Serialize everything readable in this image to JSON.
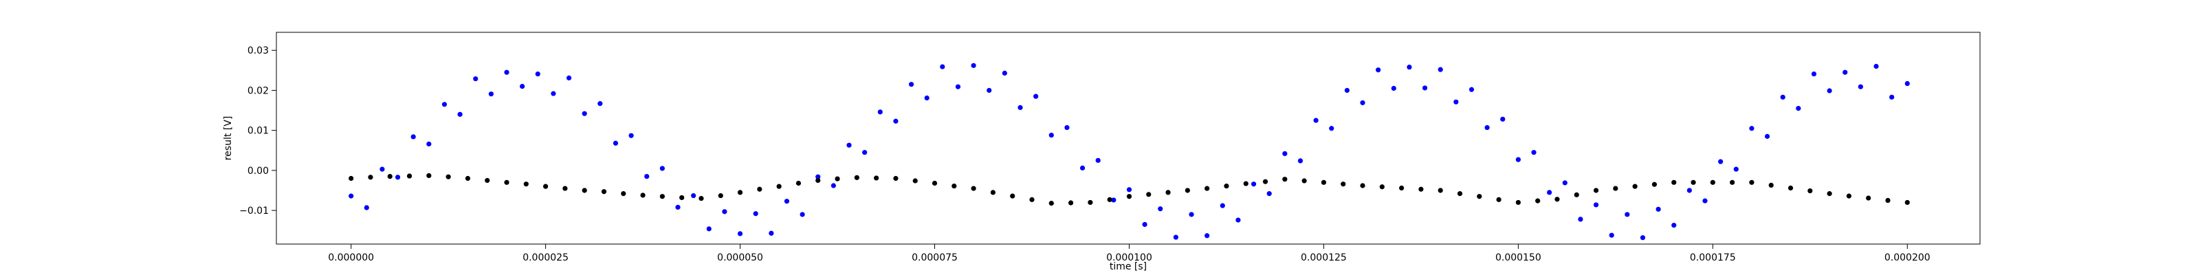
{
  "chart_data": {
    "type": "scatter",
    "xlabel": "time [s]",
    "ylabel": "result [V]",
    "xlim": [
      -9.6e-06,
      0.00020934
    ],
    "ylim": [
      -0.0184,
      0.0345
    ],
    "xticks": [
      {
        "value": 0,
        "label": "0.000000"
      },
      2.5e-05,
      {
        "value": 5e-05,
        "label": "0.000050"
      },
      7.5e-05,
      {
        "value": 0.0001,
        "label": "0.000100"
      },
      0.000125,
      {
        "value": 0.00015,
        "label": "0.000150"
      },
      0.000175,
      {
        "value": 0.0002,
        "label": "0.000200"
      }
    ],
    "yticks": [
      {
        "value": -0.01,
        "label": "−0.01"
      },
      {
        "value": 0,
        "label": "0.00"
      },
      0.01,
      0.02,
      0.03
    ],
    "grid": false,
    "series": [
      {
        "color": "#0000ff",
        "x": [
          0,
          2e-06,
          4e-06,
          6e-06,
          8e-06,
          1e-05,
          1.2e-05,
          1.4e-05,
          1.6e-05,
          1.8e-05,
          2e-05,
          2.2e-05,
          2.4e-05,
          2.6e-05,
          2.8e-05,
          3e-05,
          3.2e-05,
          3.4e-05,
          3.6e-05,
          3.8e-05,
          4e-05,
          4.2e-05,
          4.4e-05,
          4.6e-05,
          4.8e-05,
          5e-05,
          5.2e-05,
          5.4e-05,
          5.6e-05,
          5.8e-05,
          6e-05,
          6.2e-05,
          6.4e-05,
          6.6e-05,
          6.8e-05,
          7e-05,
          7.2e-05,
          7.4e-05,
          7.6e-05,
          7.8e-05,
          8e-05,
          8.2e-05,
          8.4e-05,
          8.6e-05,
          8.8e-05,
          9e-05,
          9.2e-05,
          9.4e-05,
          9.6e-05,
          9.8e-05,
          0.0001,
          0.000102,
          0.000104,
          0.000106,
          0.000108,
          0.00011,
          0.000112,
          0.000114,
          0.000116,
          0.000118,
          0.00012,
          0.000122,
          0.000124,
          0.000126,
          0.000128,
          0.00013,
          0.000132,
          0.000134,
          0.000136,
          0.000138,
          0.00014,
          0.000142,
          0.000144,
          0.000146,
          0.000148,
          0.00015,
          0.000152,
          0.000154,
          0.000156,
          0.000158,
          0.00016,
          0.000162,
          0.000164,
          0.000166,
          0.000168,
          0.00017,
          0.000172,
          0.000174,
          0.000176,
          0.000178,
          0.00018,
          0.000182,
          0.000184,
          0.000186,
          0.000188,
          0.00019,
          0.000192,
          0.000194,
          0.000196,
          0.000198,
          0.0002
        ],
        "values": [
          -0.0064,
          -0.0093,
          0.0003,
          -0.0017,
          0.0084,
          0.0066,
          0.0165,
          0.014,
          0.0229,
          0.0191,
          0.0245,
          0.021,
          0.0241,
          0.0192,
          0.0231,
          0.0142,
          0.0167,
          0.0068,
          0.0087,
          -0.0015,
          0.0005,
          -0.0092,
          -0.0063,
          -0.0146,
          -0.0103,
          -0.0158,
          -0.0108,
          -0.0157,
          -0.0077,
          -0.011,
          -0.0016,
          -0.0038,
          0.0063,
          0.0045,
          0.0146,
          0.0123,
          0.0215,
          0.0181,
          0.0259,
          0.0209,
          0.0262,
          0.02,
          0.0243,
          0.0157,
          0.0185,
          0.0088,
          0.0107,
          0.0006,
          0.0025,
          -0.0074,
          -0.0048,
          -0.0135,
          -0.0096,
          -0.0167,
          -0.011,
          -0.0163,
          -0.0088,
          -0.0124,
          -0.0034,
          -0.0058,
          0.0042,
          0.0024,
          0.0125,
          0.0105,
          0.02,
          0.0169,
          0.0251,
          0.0205,
          0.0258,
          0.0206,
          0.0252,
          0.0171,
          0.0202,
          0.0107,
          0.0128,
          0.0027,
          0.0045,
          -0.0055,
          -0.0031,
          -0.0122,
          -0.0086,
          -0.0162,
          -0.011,
          -0.0168,
          -0.0097,
          -0.0137,
          -0.005,
          -0.0076,
          0.0022,
          0.0003,
          0.0105,
          0.0085,
          0.0183,
          0.0155,
          0.0241,
          0.0199,
          0.0245,
          0.0209,
          0.026,
          0.0183,
          0.0217
        ]
      },
      {
        "color": "#000000",
        "x": [
          0,
          2.5e-06,
          5e-06,
          7.5e-06,
          1e-05,
          1.25e-05,
          1.5e-05,
          1.75e-05,
          2e-05,
          2.25e-05,
          2.5e-05,
          2.75e-05,
          3e-05,
          3.25e-05,
          3.5e-05,
          3.75e-05,
          4e-05,
          4.25e-05,
          4.5e-05,
          4.75e-05,
          5e-05,
          5.25e-05,
          5.5e-05,
          5.75e-05,
          6e-05,
          6.25e-05,
          6.5e-05,
          6.75e-05,
          7e-05,
          7.25e-05,
          7.5e-05,
          7.75e-05,
          8e-05,
          8.25e-05,
          8.5e-05,
          8.75e-05,
          9e-05,
          9.25e-05,
          9.5e-05,
          9.75e-05,
          0.0001,
          0.0001025,
          0.000105,
          0.0001075,
          0.00011,
          0.0001125,
          0.000115,
          0.0001175,
          0.00012,
          0.0001225,
          0.000125,
          0.0001275,
          0.00013,
          0.0001325,
          0.000135,
          0.0001375,
          0.00014,
          0.0001425,
          0.000145,
          0.0001475,
          0.00015,
          0.0001525,
          0.000155,
          0.0001575,
          0.00016,
          0.0001625,
          0.000165,
          0.0001675,
          0.00017,
          0.0001725,
          0.000175,
          0.0001775,
          0.00018,
          0.0001825,
          0.000185,
          0.0001875,
          0.00019,
          0.0001925,
          0.000195,
          0.0001975,
          0.0002
        ],
        "values": [
          -0.002,
          -0.0017,
          -0.0015,
          -0.0014,
          -0.0013,
          -0.0016,
          -0.002,
          -0.0025,
          -0.003,
          -0.0034,
          -0.004,
          -0.0045,
          -0.005,
          -0.0053,
          -0.0058,
          -0.0062,
          -0.0065,
          -0.0068,
          -0.007,
          -0.0063,
          -0.0055,
          -0.0047,
          -0.004,
          -0.0032,
          -0.0025,
          -0.0021,
          -0.0018,
          -0.0019,
          -0.002,
          -0.0026,
          -0.0032,
          -0.0039,
          -0.0045,
          -0.0055,
          -0.0064,
          -0.0073,
          -0.0082,
          -0.0081,
          -0.008,
          -0.0073,
          -0.0065,
          -0.006,
          -0.0055,
          -0.005,
          -0.0045,
          -0.0039,
          -0.0033,
          -0.0028,
          -0.0022,
          -0.0026,
          -0.003,
          -0.0034,
          -0.0038,
          -0.0041,
          -0.0044,
          -0.0047,
          -0.005,
          -0.0058,
          -0.0065,
          -0.0073,
          -0.008,
          -0.0076,
          -0.0072,
          -0.0061,
          -0.005,
          -0.0045,
          -0.004,
          -0.0035,
          -0.003,
          -0.003,
          -0.003,
          -0.003,
          -0.003,
          -0.0037,
          -0.0044,
          -0.0051,
          -0.0058,
          -0.0064,
          -0.0069,
          -0.0075,
          -0.008
        ]
      }
    ]
  }
}
